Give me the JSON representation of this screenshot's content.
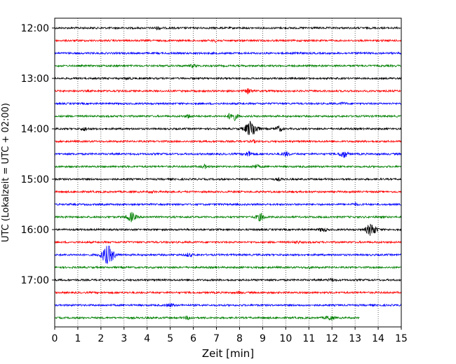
{
  "chart_data": {
    "type": "line",
    "title": "",
    "xlabel": "Zeit  [min]",
    "ylabel": "UTC (Lokalzeit = UTC + 02:00)",
    "xlim": [
      0,
      15
    ],
    "x_ticks": [
      "0",
      "1",
      "2",
      "3",
      "4",
      "5",
      "6",
      "7",
      "8",
      "9",
      "10",
      "11",
      "12",
      "13",
      "14",
      "15"
    ],
    "y_ticks": [
      {
        "label": "12:00",
        "trace": 0
      },
      {
        "label": "13:00",
        "trace": 4
      },
      {
        "label": "14:00",
        "trace": 8
      },
      {
        "label": "15:00",
        "trace": 12
      },
      {
        "label": "16:00",
        "trace": 16
      },
      {
        "label": "17:00",
        "trace": 20
      }
    ],
    "trace_interval_min": 15,
    "grid": "vertical dotted",
    "series_colors": [
      "#000000",
      "#ff0000",
      "#0000ff",
      "#008000"
    ],
    "traces": [
      {
        "start": "12:00",
        "color": "#000000",
        "end_min": 15,
        "events": [
          {
            "t": 4.5,
            "amp": 0.25
          }
        ]
      },
      {
        "start": "12:15",
        "color": "#ff0000",
        "end_min": 15,
        "events": [
          {
            "t": 7.0,
            "amp": 0.2
          }
        ]
      },
      {
        "start": "12:30",
        "color": "#0000ff",
        "end_min": 15,
        "events": [
          {
            "t": 10.5,
            "amp": 0.2
          }
        ]
      },
      {
        "start": "12:45",
        "color": "#008000",
        "end_min": 15,
        "events": [
          {
            "t": 6.0,
            "amp": 0.25
          }
        ]
      },
      {
        "start": "13:00",
        "color": "#000000",
        "end_min": 15,
        "events": [
          {
            "t": 3.2,
            "amp": 0.15
          }
        ]
      },
      {
        "start": "13:15",
        "color": "#ff0000",
        "end_min": 15,
        "events": [
          {
            "t": 8.4,
            "amp": 0.45
          }
        ]
      },
      {
        "start": "13:30",
        "color": "#0000ff",
        "end_min": 15,
        "events": [
          {
            "t": 12.5,
            "amp": 0.15
          }
        ]
      },
      {
        "start": "13:45",
        "color": "#008000",
        "end_min": 15,
        "events": [
          {
            "t": 7.7,
            "amp": 0.9
          },
          {
            "t": 5.8,
            "amp": 0.3
          }
        ]
      },
      {
        "start": "14:00",
        "color": "#000000",
        "end_min": 15,
        "events": [
          {
            "t": 8.5,
            "amp": 1.6
          },
          {
            "t": 9.7,
            "amp": 0.5
          },
          {
            "t": 1.3,
            "amp": 0.3
          }
        ]
      },
      {
        "start": "14:15",
        "color": "#ff0000",
        "end_min": 15,
        "events": [
          {
            "t": 8.6,
            "amp": 0.2
          }
        ]
      },
      {
        "start": "14:30",
        "color": "#0000ff",
        "end_min": 15,
        "events": [
          {
            "t": 12.5,
            "amp": 0.7
          },
          {
            "t": 10.0,
            "amp": 0.4
          },
          {
            "t": 8.4,
            "amp": 0.5
          }
        ]
      },
      {
        "start": "14:45",
        "color": "#008000",
        "end_min": 15,
        "events": [
          {
            "t": 8.7,
            "amp": 0.35
          },
          {
            "t": 6.5,
            "amp": 0.3
          }
        ]
      },
      {
        "start": "15:00",
        "color": "#000000",
        "end_min": 15,
        "events": [
          {
            "t": 9.7,
            "amp": 0.2
          }
        ]
      },
      {
        "start": "15:15",
        "color": "#ff0000",
        "end_min": 15,
        "events": [
          {
            "t": 4.2,
            "amp": 0.15
          }
        ]
      },
      {
        "start": "15:30",
        "color": "#0000ff",
        "end_min": 15,
        "events": [
          {
            "t": 13.0,
            "amp": 0.2
          }
        ]
      },
      {
        "start": "15:45",
        "color": "#008000",
        "end_min": 15,
        "events": [
          {
            "t": 3.3,
            "amp": 0.9
          },
          {
            "t": 8.9,
            "amp": 0.7
          }
        ]
      },
      {
        "start": "16:00",
        "color": "#000000",
        "end_min": 15,
        "events": [
          {
            "t": 13.7,
            "amp": 1.2
          },
          {
            "t": 11.6,
            "amp": 0.4
          }
        ]
      },
      {
        "start": "16:15",
        "color": "#ff0000",
        "end_min": 15,
        "events": [
          {
            "t": 10.5,
            "amp": 0.2
          }
        ]
      },
      {
        "start": "16:30",
        "color": "#0000ff",
        "end_min": 15,
        "events": [
          {
            "t": 2.3,
            "amp": 1.8
          },
          {
            "t": 5.8,
            "amp": 0.3
          }
        ]
      },
      {
        "start": "16:45",
        "color": "#008000",
        "end_min": 15,
        "events": [
          {
            "t": 11.0,
            "amp": 0.15
          }
        ]
      },
      {
        "start": "17:00",
        "color": "#000000",
        "end_min": 15,
        "events": [
          {
            "t": 12.0,
            "amp": 0.25
          }
        ]
      },
      {
        "start": "17:15",
        "color": "#ff0000",
        "end_min": 15,
        "events": [
          {
            "t": 8.0,
            "amp": 0.15
          }
        ]
      },
      {
        "start": "17:30",
        "color": "#0000ff",
        "end_min": 15,
        "events": [
          {
            "t": 5.0,
            "amp": 0.3
          }
        ]
      },
      {
        "start": "17:45",
        "color": "#008000",
        "end_min": 13.2,
        "events": [
          {
            "t": 11.9,
            "amp": 0.5
          },
          {
            "t": 5.8,
            "amp": 0.3
          }
        ]
      }
    ]
  }
}
